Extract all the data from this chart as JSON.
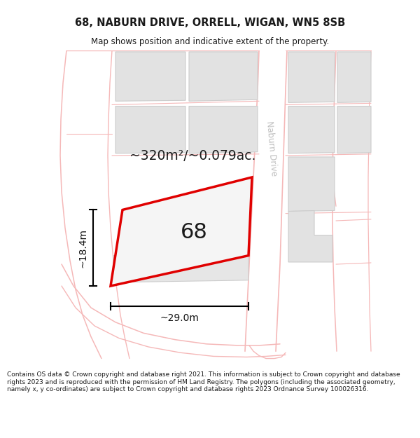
{
  "title_line1": "68, NABURN DRIVE, ORRELL, WIGAN, WN5 8SB",
  "title_line2": "Map shows position and indicative extent of the property.",
  "copyright_lines": [
    "Contains OS data © Crown copyright and database right 2021. This information is subject to Crown copyright and database rights 2023 and is reproduced with the permission of",
    "HM Land Registry. The polygons (including the associated geometry, namely x, y co-ordinates) are subject to Crown copyright and database rights 2023 Ordnance Survey",
    "100026316."
  ],
  "area_text": "~320m²/~0.079ac.",
  "dim_width": "~29.0m",
  "dim_height": "~18.4m",
  "plot_label": "68",
  "road_label": "Naburn Drive",
  "bg_color": "#ffffff",
  "plot_fill": "#f0f0f0",
  "plot_edge": "#e00000",
  "road_color": "#f5b8b8",
  "building_fill": "#e0e0e0",
  "building_edge": "#cccccc",
  "text_color": "#1a1a1a",
  "road_label_color": "#c0c0c0",
  "dim_color": "#111111"
}
